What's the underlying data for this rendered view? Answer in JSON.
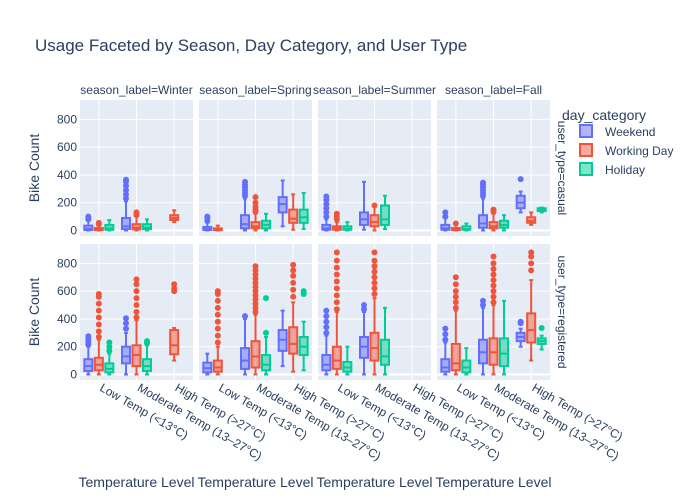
{
  "chart_data": {
    "type": "box",
    "title": "Usage Faceted by Season, Day Category, and User Type",
    "xlabel": "Temperature Level",
    "ylabel": "Bike Count",
    "ylim": [
      -40,
      940
    ],
    "yticks": [
      0,
      200,
      400,
      600,
      800
    ],
    "grid": true,
    "legend_position": "right",
    "legend": {
      "title": "day_category",
      "items": [
        {
          "name": "Weekend",
          "color": "#636efa"
        },
        {
          "name": "Working Day",
          "color": "#EF553B"
        },
        {
          "name": "Holiday",
          "color": "#00cc96"
        }
      ]
    },
    "categories": [
      "Low Temp (<13°C)",
      "Moderate Temp (13–27°C)",
      "High Temp (>27°C)"
    ],
    "seasons": [
      "season_label=Winter",
      "season_label=Spring",
      "season_label=Summer",
      "season_label=Fall"
    ],
    "user_types": [
      "user_type=casual",
      "user_type=registered"
    ],
    "panels": [
      {
        "season": 0,
        "user": 0,
        "boxes": [
          {
            "cat": 0,
            "s": 0,
            "q": [
              0,
              3,
              12,
              35,
              75
            ],
            "out": [
              80,
              90,
              100
            ]
          },
          {
            "cat": 0,
            "s": 1,
            "q": [
              0,
              2,
              7,
              18,
              40
            ],
            "out": [
              45,
              55
            ]
          },
          {
            "cat": 0,
            "s": 2,
            "q": [
              0,
              5,
              15,
              40,
              75
            ],
            "out": []
          },
          {
            "cat": 1,
            "s": 0,
            "q": [
              0,
              10,
              30,
              90,
              210
            ],
            "out": [
              230,
              260,
              290,
              320,
              350,
              365
            ]
          },
          {
            "cat": 1,
            "s": 1,
            "q": [
              0,
              8,
              20,
              45,
              100
            ],
            "out": [
              110,
              120,
              130
            ]
          },
          {
            "cat": 1,
            "s": 2,
            "q": [
              0,
              10,
              20,
              45,
              80
            ],
            "out": []
          },
          {
            "cat": 2,
            "s": 1,
            "q": [
              60,
              75,
              90,
              110,
              145
            ],
            "out": []
          }
        ]
      },
      {
        "season": 1,
        "user": 0,
        "boxes": [
          {
            "cat": 0,
            "s": 0,
            "q": [
              0,
              3,
              10,
              25,
              55
            ],
            "out": [
              70,
              90,
              100
            ]
          },
          {
            "cat": 0,
            "s": 1,
            "q": [
              0,
              2,
              6,
              15,
              35
            ],
            "out": []
          },
          {
            "cat": 1,
            "s": 0,
            "q": [
              0,
              15,
              45,
              110,
              230
            ],
            "out": [
              250,
              270,
              290,
              310,
              330,
              350
            ]
          },
          {
            "cat": 1,
            "s": 1,
            "q": [
              0,
              15,
              30,
              60,
              120
            ],
            "out": [
              135,
              150,
              170,
              200,
              240
            ]
          },
          {
            "cat": 1,
            "s": 2,
            "q": [
              0,
              15,
              40,
              70,
              120
            ],
            "out": []
          },
          {
            "cat": 2,
            "s": 0,
            "q": [
              30,
              130,
              190,
              240,
              360
            ],
            "out": []
          },
          {
            "cat": 2,
            "s": 1,
            "q": [
              5,
              55,
              85,
              150,
              260
            ],
            "out": []
          },
          {
            "cat": 2,
            "s": 2,
            "q": [
              10,
              55,
              95,
              150,
              270
            ],
            "out": []
          }
        ]
      },
      {
        "season": 2,
        "user": 0,
        "boxes": [
          {
            "cat": 0,
            "s": 0,
            "q": [
              0,
              5,
              15,
              40,
              80
            ],
            "out": [
              100,
              130,
              160,
              190,
              220,
              245
            ]
          },
          {
            "cat": 0,
            "s": 1,
            "q": [
              0,
              5,
              15,
              30,
              60
            ],
            "out": [
              80,
              100,
              120
            ]
          },
          {
            "cat": 0,
            "s": 2,
            "q": [
              0,
              5,
              12,
              30,
              60
            ],
            "out": []
          },
          {
            "cat": 1,
            "s": 0,
            "q": [
              5,
              40,
              80,
              130,
              350
            ],
            "out": []
          },
          {
            "cat": 1,
            "s": 1,
            "q": [
              0,
              30,
              60,
              110,
              170
            ],
            "out": [
              180
            ]
          },
          {
            "cat": 1,
            "s": 2,
            "q": [
              10,
              40,
              80,
              180,
              250
            ],
            "out": []
          }
        ]
      },
      {
        "season": 3,
        "user": 0,
        "boxes": [
          {
            "cat": 0,
            "s": 0,
            "q": [
              0,
              5,
              15,
              40,
              90
            ],
            "out": [
              100,
              130
            ]
          },
          {
            "cat": 0,
            "s": 1,
            "q": [
              0,
              3,
              8,
              18,
              40
            ],
            "out": [
              50
            ]
          },
          {
            "cat": 0,
            "s": 2,
            "q": [
              0,
              5,
              10,
              30,
              50
            ],
            "out": []
          },
          {
            "cat": 1,
            "s": 0,
            "q": [
              0,
              20,
              50,
              110,
              230
            ],
            "out": [
              250,
              270,
              290,
              310,
              330,
              345
            ]
          },
          {
            "cat": 1,
            "s": 1,
            "q": [
              0,
              15,
              30,
              60,
              120
            ],
            "out": [
              135,
              150
            ]
          },
          {
            "cat": 1,
            "s": 2,
            "q": [
              0,
              20,
              40,
              70,
              110
            ],
            "out": []
          },
          {
            "cat": 2,
            "s": 0,
            "q": [
              130,
              160,
              200,
              250,
              280
            ],
            "out": [
              370
            ]
          },
          {
            "cat": 2,
            "s": 1,
            "q": [
              40,
              55,
              70,
              95,
              130
            ],
            "out": []
          },
          {
            "cat": 2,
            "s": 2,
            "q": [
              130,
              140,
              150,
              160,
              165
            ],
            "out": []
          }
        ]
      },
      {
        "season": 0,
        "user": 1,
        "boxes": [
          {
            "cat": 0,
            "s": 0,
            "q": [
              0,
              25,
              60,
              110,
              200
            ],
            "out": [
              215,
              235,
              255,
              275
            ]
          },
          {
            "cat": 0,
            "s": 1,
            "q": [
              0,
              30,
              70,
              120,
              250
            ],
            "out": [
              270,
              310,
              360,
              410,
              460,
              510,
              560,
              580
            ]
          },
          {
            "cat": 0,
            "s": 2,
            "q": [
              0,
              15,
              40,
              80,
              150
            ],
            "out": [
              170,
              200,
              230
            ]
          },
          {
            "cat": 1,
            "s": 0,
            "q": [
              0,
              80,
              130,
              200,
              300
            ],
            "out": [
              330,
              370,
              405
            ]
          },
          {
            "cat": 1,
            "s": 1,
            "q": [
              0,
              60,
              140,
              210,
              390
            ],
            "out": [
              410,
              450,
              500,
              550,
              600,
              650,
              685
            ]
          },
          {
            "cat": 1,
            "s": 2,
            "q": [
              0,
              25,
              60,
              110,
              210
            ],
            "out": [
              225,
              240
            ]
          },
          {
            "cat": 2,
            "s": 1,
            "q": [
              100,
              145,
              210,
              320,
              335
            ],
            "out": [
              600,
              620,
              650
            ]
          }
        ]
      },
      {
        "season": 1,
        "user": 1,
        "boxes": [
          {
            "cat": 0,
            "s": 0,
            "q": [
              0,
              15,
              45,
              85,
              150
            ],
            "out": []
          },
          {
            "cat": 0,
            "s": 1,
            "q": [
              0,
              20,
              50,
              100,
              200
            ],
            "out": [
              230,
              280,
              330,
              380,
              430,
              480,
              530,
              580,
              600
            ]
          },
          {
            "cat": 1,
            "s": 0,
            "q": [
              0,
              40,
              100,
              190,
              400
            ],
            "out": [
              420
            ]
          },
          {
            "cat": 1,
            "s": 1,
            "q": [
              0,
              50,
              130,
              240,
              430
            ],
            "out": [
              450,
              480,
              510,
              540,
              570,
              600,
              630,
              660,
              690,
              720,
              750,
              780
            ]
          },
          {
            "cat": 1,
            "s": 2,
            "q": [
              0,
              30,
              70,
              140,
              270
            ],
            "out": [
              300,
              550
            ]
          },
          {
            "cat": 2,
            "s": 0,
            "q": [
              60,
              170,
              250,
              320,
              460
            ],
            "out": []
          },
          {
            "cat": 2,
            "s": 1,
            "q": [
              20,
              150,
              220,
              340,
              520
            ],
            "out": [
              560,
              610,
              660,
              710,
              750,
              790
            ]
          },
          {
            "cat": 2,
            "s": 2,
            "q": [
              30,
              140,
              200,
              270,
              380
            ],
            "out": [
              580,
              600
            ]
          }
        ]
      },
      {
        "season": 2,
        "user": 1,
        "boxes": [
          {
            "cat": 0,
            "s": 0,
            "q": [
              0,
              30,
              70,
              140,
              280
            ],
            "out": [
              300,
              340,
              380,
              420,
              460
            ]
          },
          {
            "cat": 0,
            "s": 1,
            "q": [
              0,
              40,
              100,
              200,
              450
            ],
            "out": [
              470,
              520,
              570,
              620,
              670,
              720,
              770,
              820,
              880
            ]
          },
          {
            "cat": 0,
            "s": 2,
            "q": [
              0,
              20,
              50,
              90,
              200
            ],
            "out": []
          },
          {
            "cat": 1,
            "s": 0,
            "q": [
              0,
              120,
              200,
              270,
              450
            ],
            "out": [
              470,
              500
            ]
          },
          {
            "cat": 1,
            "s": 1,
            "q": [
              0,
              100,
              190,
              300,
              550
            ],
            "out": [
              580,
              620,
              660,
              700,
              740,
              780,
              820,
              880
            ]
          },
          {
            "cat": 1,
            "s": 2,
            "q": [
              0,
              70,
              130,
              250,
              480
            ],
            "out": []
          }
        ]
      },
      {
        "season": 3,
        "user": 1,
        "boxes": [
          {
            "cat": 0,
            "s": 0,
            "q": [
              0,
              20,
              50,
              110,
              230
            ],
            "out": [
              250,
              290,
              330
            ]
          },
          {
            "cat": 0,
            "s": 1,
            "q": [
              0,
              30,
              80,
              220,
              460
            ],
            "out": [
              480,
              520,
              560,
              600,
              650,
              700
            ]
          },
          {
            "cat": 0,
            "s": 2,
            "q": [
              0,
              15,
              50,
              100,
              190
            ],
            "out": []
          },
          {
            "cat": 1,
            "s": 0,
            "q": [
              0,
              80,
              160,
              250,
              480
            ],
            "out": [
              500,
              530
            ]
          },
          {
            "cat": 1,
            "s": 1,
            "q": [
              0,
              70,
              160,
              260,
              500
            ],
            "out": [
              520,
              560,
              600,
              640,
              680,
              720,
              760,
              800,
              850
            ]
          },
          {
            "cat": 1,
            "s": 2,
            "q": [
              0,
              60,
              150,
              260,
              530
            ],
            "out": []
          },
          {
            "cat": 2,
            "s": 0,
            "q": [
              200,
              240,
              270,
              300,
              330
            ],
            "out": [
              370,
              380
            ]
          },
          {
            "cat": 2,
            "s": 1,
            "q": [
              100,
              230,
              320,
              440,
              680
            ],
            "out": [
              750,
              800,
              850,
              880
            ]
          },
          {
            "cat": 2,
            "s": 2,
            "q": [
              180,
              220,
              240,
              260,
              280
            ],
            "out": [
              335
            ]
          }
        ]
      }
    ]
  }
}
